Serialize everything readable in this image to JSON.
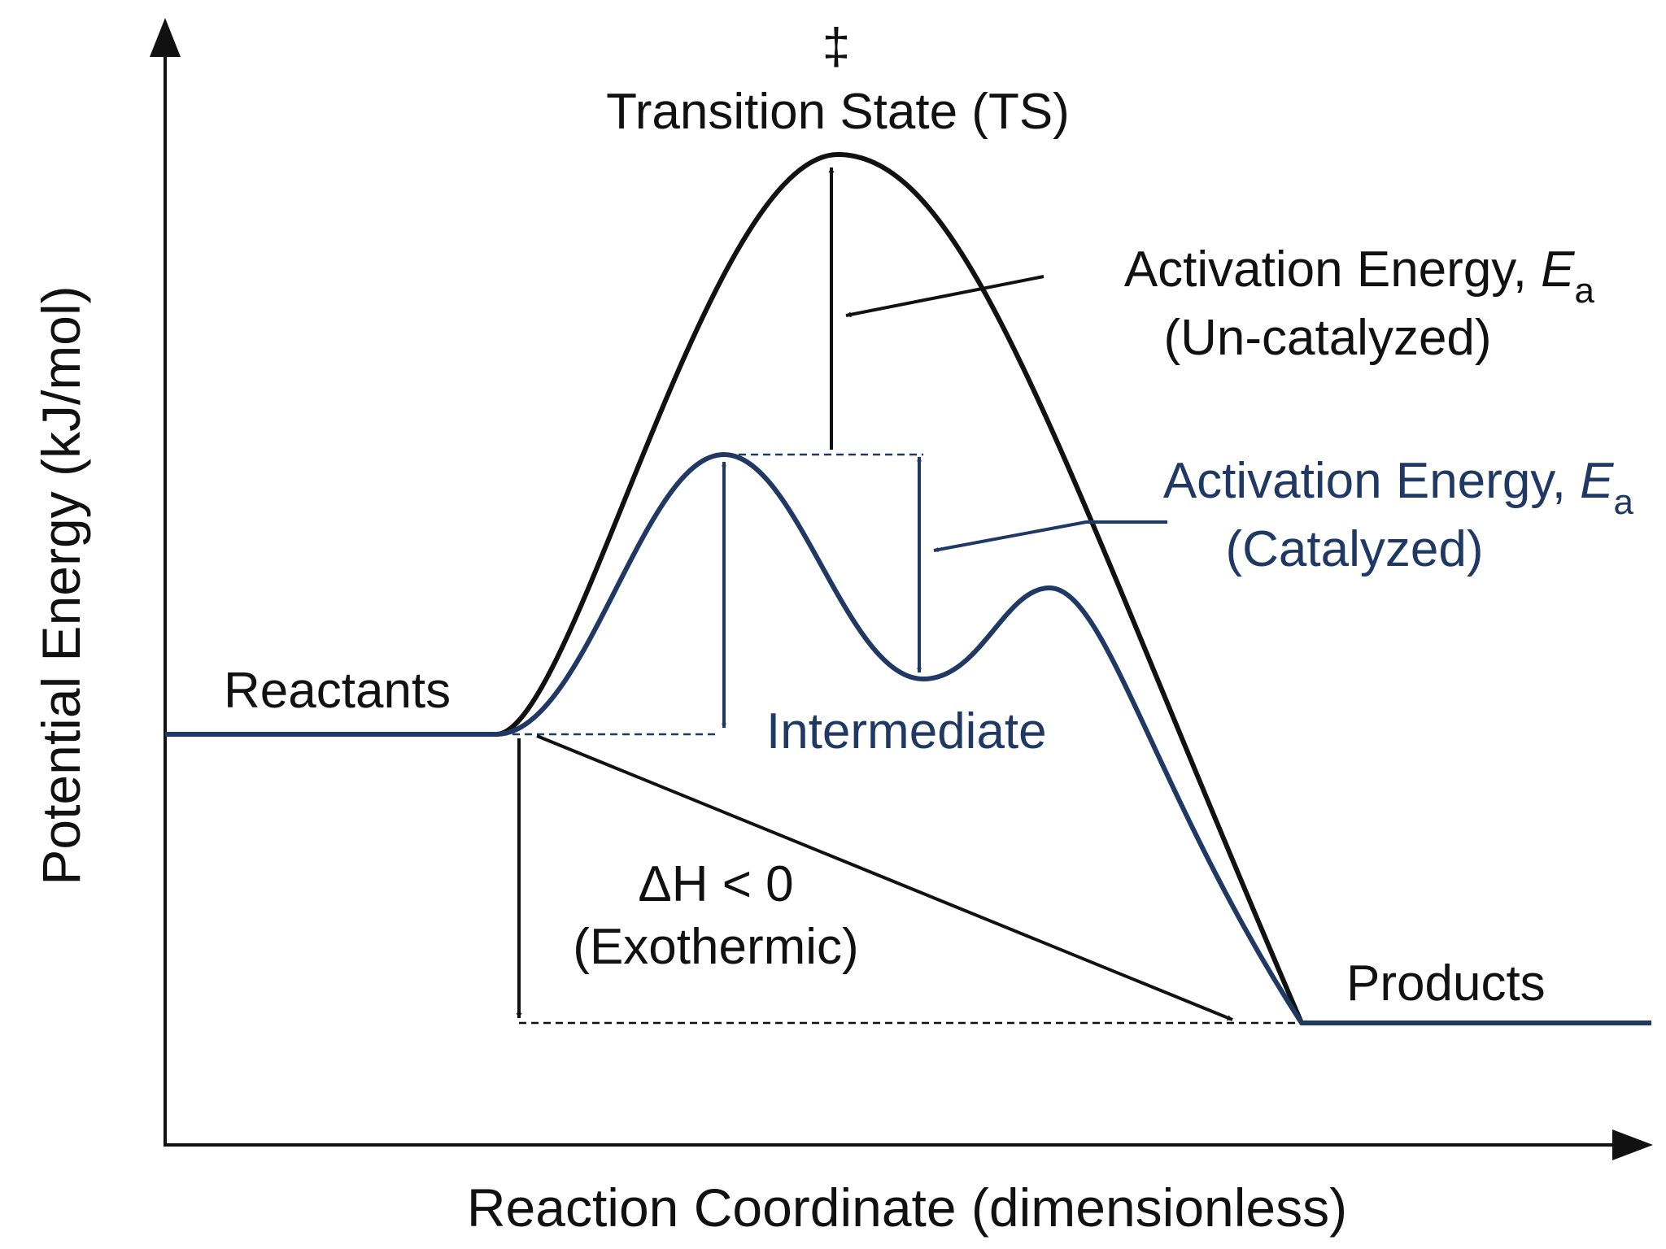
{
  "axes": {
    "y_label": "Potential Energy (kJ/mol)",
    "x_label": "Reaction Coordinate (dimensionless)"
  },
  "labels": {
    "double_dagger": "‡",
    "transition_state": "Transition State (TS)",
    "reactants": "Reactants",
    "products": "Products",
    "intermediate": "Intermediate",
    "delta_h": "ΔH < 0",
    "exothermic": "(Exothermic)",
    "ea_uncat_prefix": "Activation Energy, ",
    "ea_uncat_symbol": "E",
    "ea_uncat_sub": "a",
    "ea_uncat_note": "(Un-catalyzed)",
    "ea_cat_prefix": "Activation Energy, ",
    "ea_cat_symbol": "E",
    "ea_cat_sub": "a",
    "ea_cat_note": "(Catalyzed)"
  },
  "colors": {
    "uncatalyzed": "#111111",
    "catalyzed": "#1f3864",
    "axis": "#111111"
  }
}
